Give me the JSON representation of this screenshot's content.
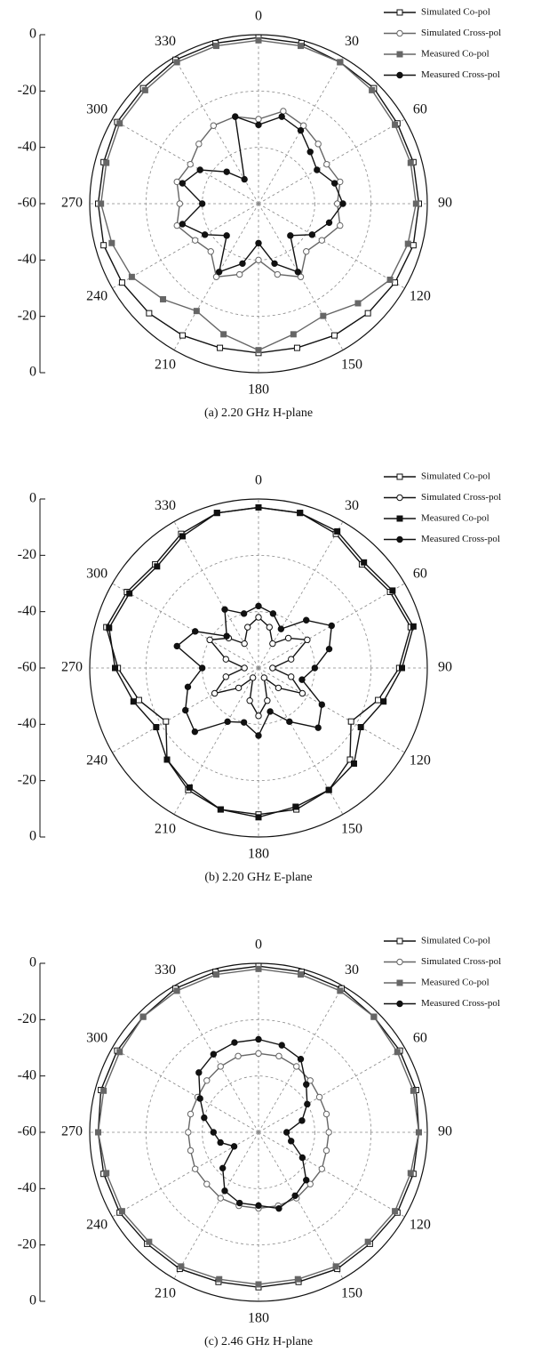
{
  "chart_data": [
    {
      "type": "polar",
      "caption": "(a) 2.20 GHz H-plane",
      "x": [
        0,
        15,
        30,
        45,
        60,
        75,
        90,
        105,
        120,
        135,
        150,
        165,
        180,
        195,
        210,
        225,
        240,
        255,
        270,
        285,
        300,
        315,
        330,
        345
      ],
      "xticks": [
        0,
        30,
        60,
        90,
        120,
        150,
        180,
        210,
        240,
        270,
        300,
        330
      ],
      "ylim": [
        -60,
        0
      ],
      "yticks": [
        0,
        -20,
        -40,
        -60
      ],
      "grid": true,
      "series": [
        {
          "name": "Simulated Co-pol",
          "color": "#111111",
          "marker": "open-square",
          "values": [
            -1,
            -1,
            -2,
            -2,
            -3,
            -3,
            -3,
            -3,
            -4,
            -5,
            -6,
            -7,
            -7,
            -7,
            -6,
            -5,
            -4,
            -3,
            -3,
            -3,
            -2,
            -2,
            -1,
            -1
          ]
        },
        {
          "name": "Simulated Cross-pol",
          "color": "#666666",
          "marker": "open-circle",
          "values": [
            -30,
            -26,
            -28,
            -30,
            -32,
            -30,
            -32,
            -30,
            -34,
            -36,
            -30,
            -34,
            -40,
            -34,
            -30,
            -36,
            -34,
            -30,
            -32,
            -30,
            -32,
            -30,
            -28,
            -28
          ]
        },
        {
          "name": "Measured Co-pol",
          "color": "#666666",
          "marker": "square",
          "values": [
            -2,
            -2,
            -2,
            -3,
            -4,
            -4,
            -4,
            -5,
            -6,
            -10,
            -14,
            -12,
            -8,
            -12,
            -16,
            -12,
            -8,
            -6,
            -4,
            -4,
            -3,
            -3,
            -2,
            -2
          ]
        },
        {
          "name": "Measured Cross-pol",
          "color": "#111111",
          "marker": "circle",
          "values": [
            -32,
            -28,
            -30,
            -34,
            -36,
            -32,
            -30,
            -34,
            -38,
            -44,
            -32,
            -38,
            -46,
            -38,
            -32,
            -44,
            -38,
            -32,
            -40,
            -32,
            -36,
            -44,
            -50,
            -28
          ]
        }
      ]
    },
    {
      "type": "polar",
      "caption": "(b) 2.20 GHz E-plane",
      "x": [
        0,
        15,
        30,
        45,
        60,
        75,
        90,
        105,
        120,
        135,
        150,
        165,
        180,
        195,
        210,
        225,
        240,
        255,
        270,
        285,
        300,
        315,
        330,
        345
      ],
      "xticks": [
        0,
        30,
        60,
        90,
        120,
        150,
        180,
        210,
        240,
        270,
        300,
        330
      ],
      "ylim": [
        -60,
        0
      ],
      "yticks": [
        0,
        -20,
        -40,
        -60
      ],
      "grid": true,
      "series": [
        {
          "name": "Simulated Co-pol",
          "color": "#111111",
          "marker": "open-square",
          "values": [
            -3,
            -3,
            -5,
            -8,
            -6,
            -4,
            -10,
            -16,
            -22,
            -14,
            -10,
            -8,
            -8,
            -8,
            -10,
            -14,
            -22,
            -16,
            -10,
            -4,
            -6,
            -8,
            -5,
            -3
          ]
        },
        {
          "name": "Simulated Cross-pol",
          "color": "#111111",
          "marker": "open-circle",
          "values": [
            -42,
            -45,
            -50,
            -45,
            -40,
            -48,
            -55,
            -48,
            -42,
            -50,
            -56,
            -48,
            -43,
            -48,
            -56,
            -50,
            -42,
            -48,
            -55,
            -48,
            -40,
            -45,
            -50,
            -45
          ]
        },
        {
          "name": "Measured Co-pol",
          "color": "#111111",
          "marker": "square",
          "values": [
            -3,
            -3,
            -4,
            -7,
            -5,
            -3,
            -9,
            -14,
            -18,
            -12,
            -10,
            -9,
            -7,
            -8,
            -11,
            -14,
            -18,
            -14,
            -9,
            -5,
            -7,
            -9,
            -6,
            -3
          ]
        },
        {
          "name": "Measured Cross-pol",
          "color": "#111111",
          "marker": "circle",
          "values": [
            -38,
            -40,
            -44,
            -36,
            -30,
            -34,
            -40,
            -44,
            -34,
            -30,
            -38,
            -44,
            -36,
            -40,
            -38,
            -28,
            -30,
            -34,
            -40,
            -30,
            -34,
            -44,
            -36,
            -40
          ]
        }
      ]
    },
    {
      "type": "polar",
      "caption": "(c) 2.46 GHz H-plane",
      "x": [
        0,
        15,
        30,
        45,
        60,
        75,
        90,
        105,
        120,
        135,
        150,
        165,
        180,
        195,
        210,
        225,
        240,
        255,
        270,
        285,
        300,
        315,
        330,
        345
      ],
      "xticks": [
        0,
        30,
        60,
        90,
        120,
        150,
        180,
        210,
        240,
        270,
        300,
        330
      ],
      "ylim": [
        -60,
        0
      ],
      "yticks": [
        0,
        -20,
        -40,
        -60
      ],
      "grid": true,
      "series": [
        {
          "name": "Simulated Co-pol",
          "color": "#111111",
          "marker": "open-square",
          "values": [
            -1,
            -1,
            -1,
            -2,
            -2,
            -2,
            -3,
            -3,
            -3,
            -4,
            -4,
            -5,
            -5,
            -5,
            -4,
            -4,
            -3,
            -3,
            -3,
            -2,
            -2,
            -2,
            -1,
            -1
          ]
        },
        {
          "name": "Simulated Cross-pol",
          "color": "#666666",
          "marker": "open-circle",
          "values": [
            -32,
            -32,
            -33,
            -34,
            -35,
            -35,
            -35,
            -35,
            -34,
            -34,
            -33,
            -33,
            -33,
            -33,
            -33,
            -34,
            -34,
            -35,
            -35,
            -35,
            -35,
            -34,
            -33,
            -32
          ]
        },
        {
          "name": "Measured Co-pol",
          "color": "#666666",
          "marker": "square",
          "values": [
            -2,
            -2,
            -2,
            -2,
            -3,
            -3,
            -3,
            -4,
            -4,
            -5,
            -5,
            -6,
            -6,
            -6,
            -5,
            -5,
            -4,
            -4,
            -3,
            -3,
            -3,
            -2,
            -2,
            -2
          ]
        },
        {
          "name": "Measured Cross-pol",
          "color": "#111111",
          "marker": "circle",
          "values": [
            -27,
            -28,
            -30,
            -36,
            -40,
            -44,
            -50,
            -48,
            -42,
            -36,
            -34,
            -32,
            -34,
            -34,
            -36,
            -42,
            -50,
            -46,
            -44,
            -40,
            -36,
            -30,
            -28,
            -27
          ]
        }
      ]
    }
  ]
}
